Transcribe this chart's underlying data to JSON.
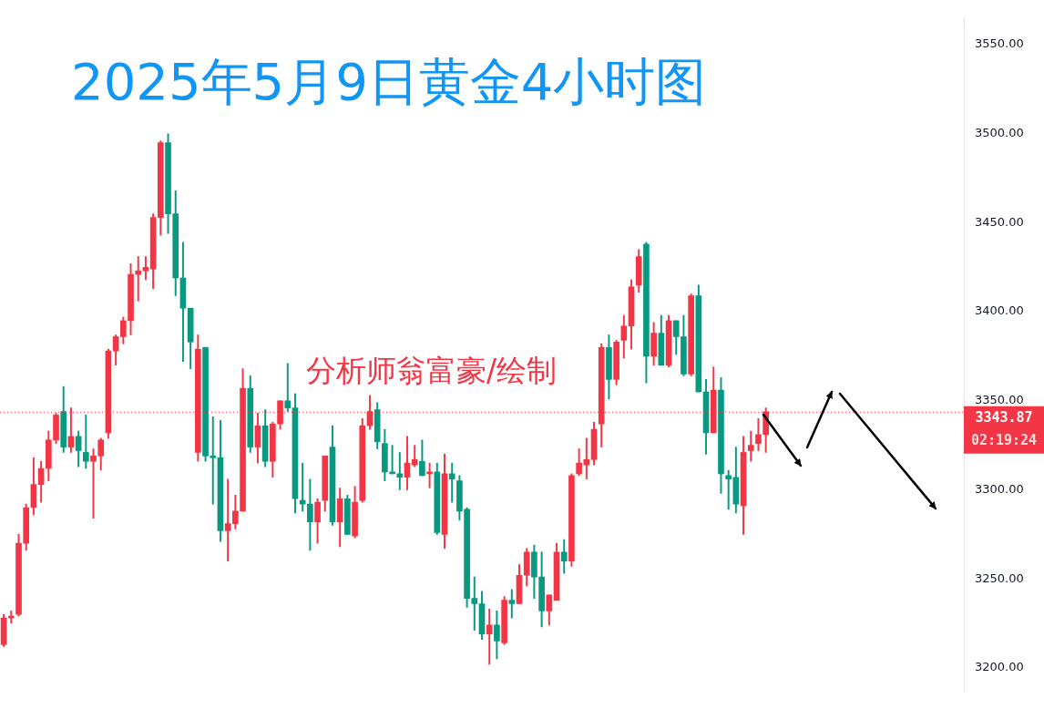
{
  "chart_data": {
    "type": "candlestick",
    "title": "2025年5月9日黄金4小时图",
    "annotations": [
      "分析师翁富豪/绘制",
      "02:19:24"
    ],
    "categories": [
      null,
      null,
      null,
      null,
      null,
      null,
      null,
      null,
      null,
      null,
      null,
      null,
      null,
      null,
      null,
      null,
      null,
      null,
      null,
      null,
      null,
      null,
      null,
      null,
      null,
      null,
      null,
      null,
      null,
      null,
      null,
      null,
      null,
      null,
      null,
      null,
      null,
      null,
      null,
      null,
      null,
      null,
      null,
      null,
      null,
      null,
      null,
      null,
      null,
      null,
      null,
      null,
      null,
      null,
      null,
      null,
      null,
      null,
      null,
      null,
      null,
      null,
      null,
      null,
      null,
      null,
      null,
      null,
      null,
      null,
      null,
      null,
      null,
      null,
      null,
      null,
      null,
      null,
      null,
      null,
      null,
      null,
      null,
      null,
      null,
      null,
      null,
      null,
      null,
      null,
      null,
      null,
      null,
      null,
      null,
      null,
      null,
      null,
      null,
      null,
      null,
      null,
      null,
      null,
      null,
      null,
      null,
      null,
      null,
      null,
      null,
      null,
      null,
      null,
      null,
      null,
      null,
      null,
      null,
      null,
      null,
      null,
      null,
      null,
      null,
      null,
      null,
      null,
      null
    ],
    "ohlc": [
      [
        3213,
        3230,
        3212,
        3228
      ],
      [
        3228,
        3232,
        3225,
        3229
      ],
      [
        3230,
        3275,
        3229,
        3270
      ],
      [
        3270,
        3292,
        3266,
        3290
      ],
      [
        3290,
        3318,
        3286,
        3303
      ],
      [
        3303,
        3316,
        3293,
        3312
      ],
      [
        3312,
        3333,
        3305,
        3328
      ],
      [
        3328,
        3343,
        3326,
        3342
      ],
      [
        3344,
        3358,
        3321,
        3324
      ],
      [
        3324,
        3346,
        3321,
        3330
      ],
      [
        3330,
        3333,
        3313,
        3322
      ],
      [
        3321,
        3342,
        3312,
        3316
      ],
      [
        3316,
        3323,
        3284,
        3319
      ],
      [
        3319,
        3329,
        3311,
        3328
      ],
      [
        3332,
        3379,
        3329,
        3378
      ],
      [
        3378,
        3387,
        3370,
        3386
      ],
      [
        3386,
        3397,
        3382,
        3395
      ],
      [
        3395,
        3427,
        3387,
        3421
      ],
      [
        3421,
        3431,
        3406,
        3423
      ],
      [
        3423,
        3431,
        3418,
        3425
      ],
      [
        3424,
        3455,
        3413,
        3453
      ],
      [
        3453,
        3496,
        3443,
        3495
      ],
      [
        3495,
        3500,
        3444,
        3455
      ],
      [
        3455,
        3468,
        3409,
        3419
      ],
      [
        3419,
        3439,
        3372,
        3402
      ],
      [
        3402,
        3402,
        3368,
        3383
      ],
      [
        3321,
        3387,
        3316,
        3379
      ],
      [
        3380,
        3380,
        3316,
        3319
      ],
      [
        3319,
        3341,
        3292,
        3318
      ],
      [
        3318,
        3339,
        3271,
        3277
      ],
      [
        3277,
        3306,
        3260,
        3281
      ],
      [
        3281,
        3297,
        3278,
        3288
      ],
      [
        3288,
        3368,
        3288,
        3357
      ],
      [
        3357,
        3364,
        3321,
        3324
      ],
      [
        3324,
        3343,
        3315,
        3336
      ],
      [
        3336,
        3345,
        3313,
        3316
      ],
      [
        3316,
        3338,
        3307,
        3337
      ],
      [
        3337,
        3350,
        3334,
        3350
      ],
      [
        3350,
        3371,
        3344,
        3346
      ],
      [
        3346,
        3354,
        3287,
        3295
      ],
      [
        3294,
        3315,
        3288,
        3292
      ],
      [
        3292,
        3306,
        3266,
        3282
      ],
      [
        3282,
        3295,
        3270,
        3293
      ],
      [
        3294,
        3319,
        3288,
        3319
      ],
      [
        3324,
        3336,
        3280,
        3282
      ],
      [
        3282,
        3301,
        3268,
        3295
      ],
      [
        3295,
        3297,
        3275,
        3275
      ],
      [
        3274,
        3302,
        3273,
        3293
      ],
      [
        3294,
        3340,
        3293,
        3336
      ],
      [
        3336,
        3353,
        3334,
        3344
      ],
      [
        3345,
        3349,
        3323,
        3327
      ],
      [
        3326,
        3334,
        3305,
        3310
      ],
      [
        3310,
        3325,
        3309,
        3309
      ],
      [
        3309,
        3321,
        3300,
        3307
      ],
      [
        3307,
        3330,
        3300,
        3315
      ],
      [
        3314,
        3325,
        3313,
        3317
      ],
      [
        3316,
        3328,
        3308,
        3308
      ],
      [
        3309,
        3315,
        3301,
        3310
      ],
      [
        3310,
        3315,
        3275,
        3276
      ],
      [
        3275,
        3320,
        3267,
        3309
      ],
      [
        3309,
        3315,
        3293,
        3306
      ],
      [
        3305,
        3308,
        3283,
        3288
      ],
      [
        3289,
        3290,
        3234,
        3239
      ],
      [
        3239,
        3251,
        3221,
        3236
      ],
      [
        3236,
        3243,
        3216,
        3219
      ],
      [
        3219,
        3233,
        3202,
        3224
      ],
      [
        3224,
        3232,
        3205,
        3215
      ],
      [
        3214,
        3240,
        3213,
        3238
      ],
      [
        3238,
        3244,
        3228,
        3236
      ],
      [
        3236,
        3258,
        3236,
        3252
      ],
      [
        3252,
        3267,
        3246,
        3265
      ],
      [
        3265,
        3269,
        3239,
        3251
      ],
      [
        3251,
        3265,
        3223,
        3232
      ],
      [
        3232,
        3241,
        3224,
        3241
      ],
      [
        3238,
        3270,
        3238,
        3265
      ],
      [
        3265,
        3272,
        3253,
        3260
      ],
      [
        3260,
        3309,
        3257,
        3308
      ],
      [
        3309,
        3323,
        3308,
        3315
      ],
      [
        3314,
        3329,
        3306,
        3317
      ],
      [
        3317,
        3338,
        3314,
        3334
      ],
      [
        3337,
        3382,
        3324,
        3380
      ],
      [
        3380,
        3387,
        3351,
        3362
      ],
      [
        3362,
        3384,
        3359,
        3383
      ],
      [
        3384,
        3398,
        3374,
        3392
      ],
      [
        3392,
        3418,
        3379,
        3414
      ],
      [
        3415,
        3435,
        3411,
        3431
      ],
      [
        3438,
        3439,
        3360,
        3375
      ],
      [
        3375,
        3394,
        3370,
        3388
      ],
      [
        3388,
        3398,
        3370,
        3370
      ],
      [
        3370,
        3398,
        3369,
        3395
      ],
      [
        3395,
        3395,
        3376,
        3386
      ],
      [
        3386,
        3398,
        3364,
        3365
      ],
      [
        3365,
        3410,
        3364,
        3409
      ],
      [
        3409,
        3415,
        3355,
        3355
      ],
      [
        3355,
        3362,
        3320,
        3332
      ],
      [
        3332,
        3369,
        3332,
        3356
      ],
      [
        3356,
        3363,
        3298,
        3309
      ],
      [
        3308,
        3311,
        3289,
        3306
      ],
      [
        3307,
        3324,
        3287,
        3292
      ],
      [
        3291,
        3330,
        3275,
        3321
      ],
      [
        3322,
        3333,
        3316,
        3325
      ],
      [
        3326,
        3340,
        3322,
        3331
      ],
      [
        3331,
        3346,
        3321,
        3343.87
      ],
      null,
      null,
      null,
      null,
      null,
      null,
      null,
      null,
      null,
      null,
      null,
      null,
      null,
      null,
      null,
      null,
      null,
      null,
      null,
      null,
      null,
      null,
      null,
      null,
      null,
      null
    ],
    "colors": [
      "#f23645",
      "#f23645",
      "#f23645",
      "#f23645",
      "#f23645",
      "#f23645",
      "#f23645",
      "#f23645",
      "#089981",
      "#f23645",
      "#089981",
      "#089981",
      "#f23645",
      "#f23645",
      "#f23645",
      "#f23645",
      "#f23645",
      "#f23645",
      "#f23645",
      "#f23645",
      "#f23645",
      "#f23645",
      "#089981",
      "#089981",
      "#089981",
      "#089981",
      "#f23645",
      "#089981",
      "#089981",
      "#089981",
      "#f23645",
      "#f23645",
      "#f23645",
      "#089981",
      "#f23645",
      "#089981",
      "#f23645",
      "#f23645",
      "#089981",
      "#089981",
      "#089981",
      "#089981",
      "#f23645",
      "#f23645",
      "#089981",
      "#f23645",
      "#089981",
      "#f23645",
      "#f23645",
      "#f23645",
      "#089981",
      "#089981",
      "#089981",
      "#089981",
      "#f23645",
      "#f23645",
      "#089981",
      "#f23645",
      "#089981",
      "#f23645",
      "#089981",
      "#089981",
      "#089981",
      "#089981",
      "#089981",
      "#f23645",
      "#089981",
      "#f23645",
      "#089981",
      "#f23645",
      "#f23645",
      "#089981",
      "#089981",
      "#f23645",
      "#f23645",
      "#089981",
      "#f23645",
      "#f23645",
      "#f23645",
      "#f23645",
      "#f23645",
      "#089981",
      "#f23645",
      "#f23645",
      "#f23645",
      "#f23645",
      "#089981",
      "#f23645",
      "#089981",
      "#f23645",
      "#089981",
      "#089981",
      "#f23645",
      "#089981",
      "#089981",
      "#f23645",
      "#089981",
      "#089981",
      "#089981",
      "#f23645",
      "#f23645",
      "#f23645",
      "#f23645",
      null,
      null,
      null,
      null,
      null,
      null,
      null,
      null,
      null,
      null,
      null,
      null,
      null,
      null,
      null,
      null,
      null,
      null,
      null,
      null,
      null,
      null,
      null,
      null,
      null,
      null
    ],
    "ylim": [
      3187,
      3565
    ],
    "yticks": [
      {
        "value": 3200,
        "label": "3200.00"
      },
      {
        "value": 3250,
        "label": "3250.00"
      },
      {
        "value": 3300,
        "label": "3300.00"
      },
      {
        "value": 3350,
        "label": "3350.00"
      },
      {
        "value": 3400,
        "label": "3400.00"
      },
      {
        "value": 3450,
        "label": "3450.00"
      },
      {
        "value": 3500,
        "label": "3500.00"
      },
      {
        "value": 3550,
        "label": "3550.00"
      }
    ],
    "ref_lines": [
      {
        "axis": "y",
        "value": 3343.87,
        "label": "3343.87",
        "color": "#f23645",
        "line_style": "dotted"
      }
    ],
    "grid": false,
    "legend": false
  }
}
